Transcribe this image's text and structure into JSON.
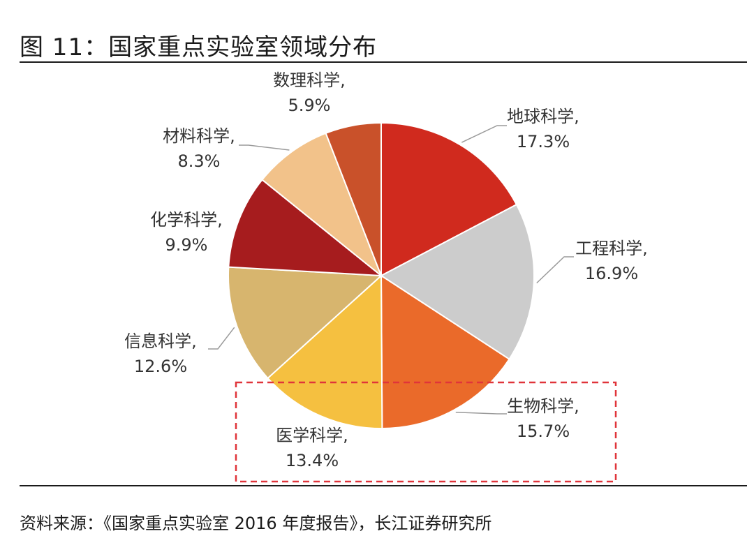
{
  "title": "图 11：国家重点实验室领域分布",
  "source": "资料来源：《国家重点实验室 2016 年度报告》，长江证券研究所",
  "chart_data": {
    "type": "pie",
    "title": "",
    "slices": [
      {
        "name": "地球科学",
        "value": 17.3,
        "label": "17.3%",
        "color": "#D02A1E"
      },
      {
        "name": "工程科学",
        "value": 16.9,
        "label": "16.9%",
        "color": "#CCCCCC"
      },
      {
        "name": "生物科学",
        "value": 15.7,
        "label": "15.7%",
        "color": "#EA6A2A"
      },
      {
        "name": "医学科学",
        "value": 13.4,
        "label": "13.4%",
        "color": "#F5C040"
      },
      {
        "name": "信息科学",
        "value": 12.6,
        "label": "12.6%",
        "color": "#D7B56E"
      },
      {
        "name": "化学科学",
        "value": 9.9,
        "label": "9.9%",
        "color": "#A61C1E"
      },
      {
        "name": "材料科学",
        "value": 8.3,
        "label": "8.3%",
        "color": "#F2C28A"
      },
      {
        "name": "数理科学",
        "value": 5.9,
        "label": "5.9%",
        "color": "#C9512A"
      }
    ],
    "highlight": [
      "生物科学",
      "医学科学"
    ],
    "highlight_color": "#E0343A",
    "legend": "none"
  }
}
